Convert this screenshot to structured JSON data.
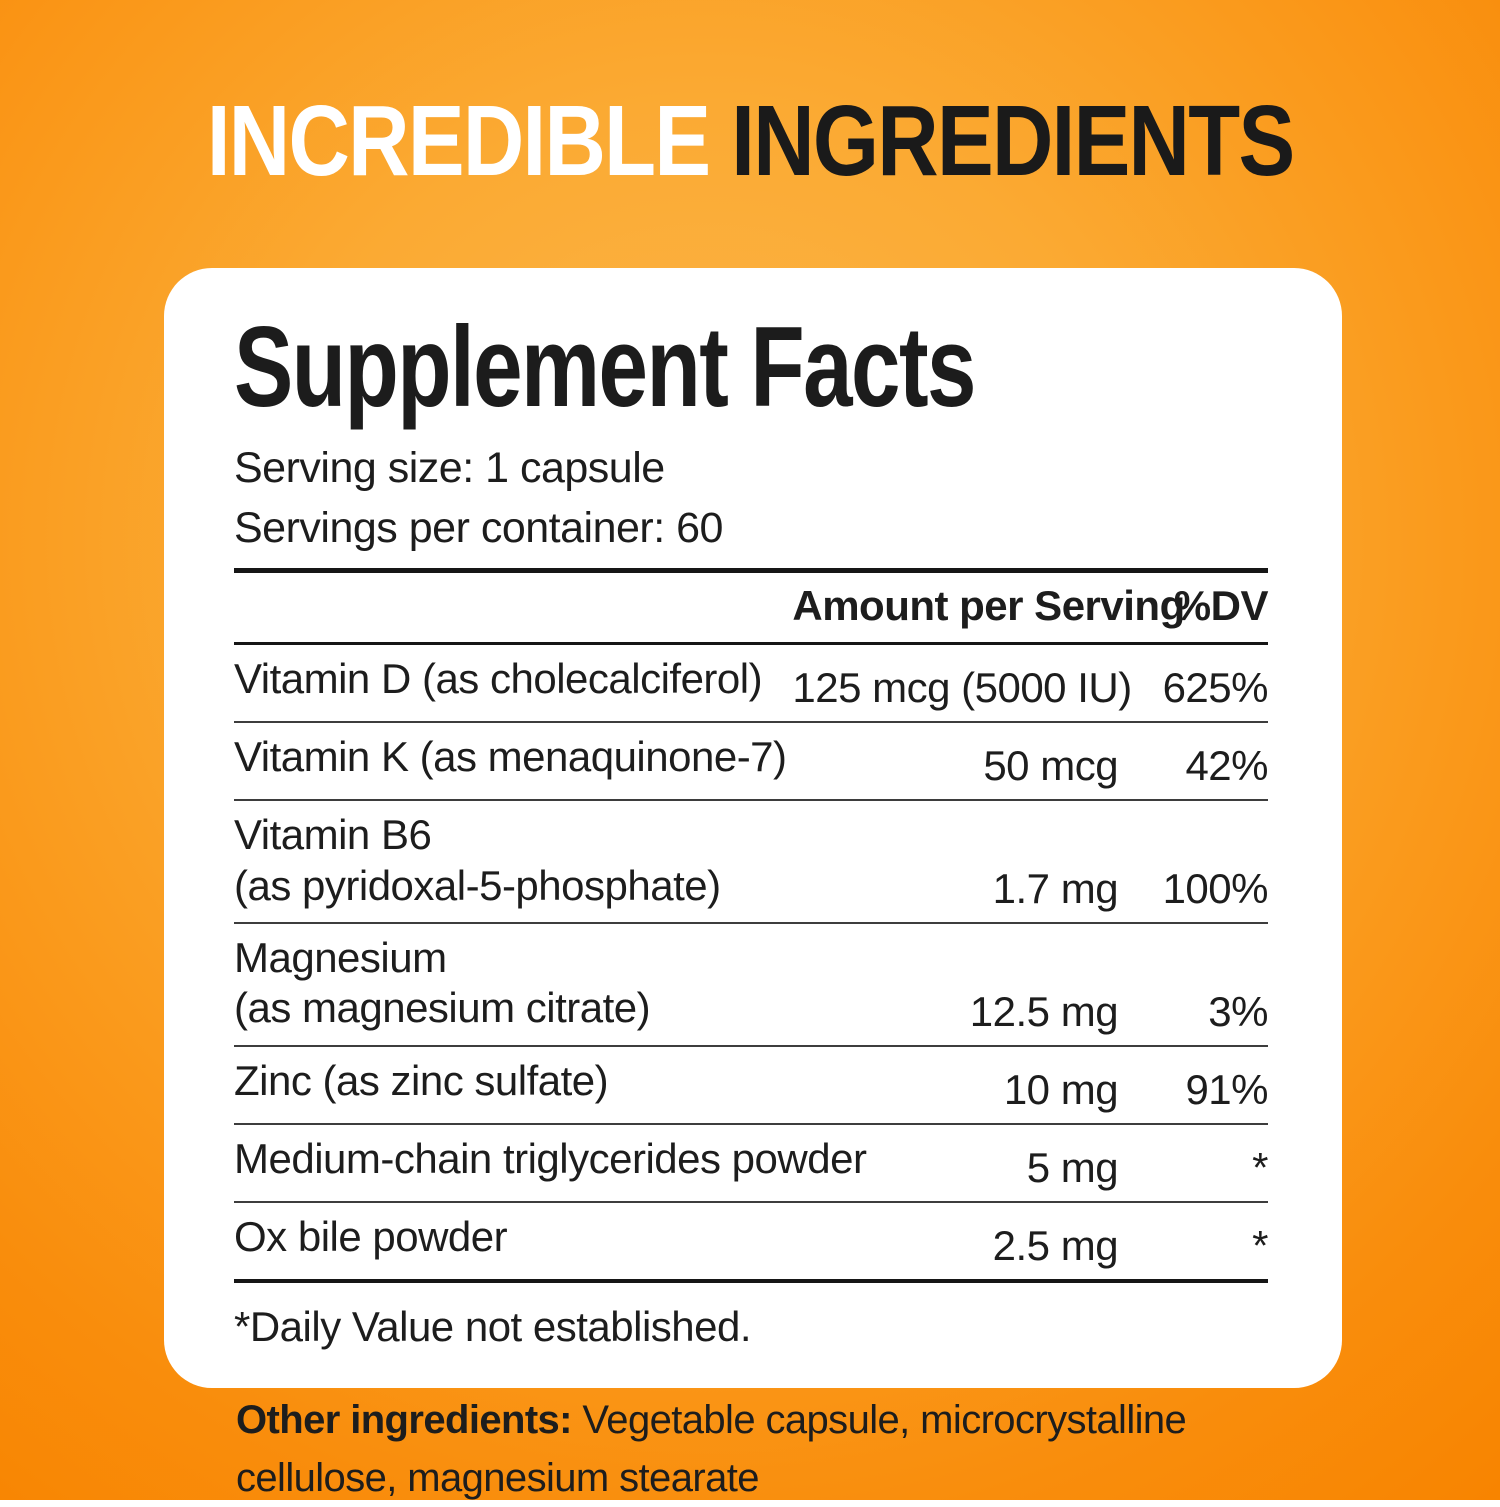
{
  "headline": {
    "white": "INCREDIBLE",
    "dark": "INGREDIENTS"
  },
  "panel": {
    "title": "Supplement Facts",
    "serving_size": "Serving size: 1 capsule",
    "servings_per_container": "Servings per container: 60",
    "table": {
      "amount_header": "Amount per Serving",
      "dv_header": "%DV",
      "rows": [
        {
          "name": "Vitamin D (as cholecalciferol)",
          "name2": "",
          "amount": "125 mcg (5000 IU)",
          "dv": "625%"
        },
        {
          "name": "Vitamin K (as menaquinone-7)",
          "name2": "",
          "amount": "50 mcg",
          "dv": "42%"
        },
        {
          "name": "Vitamin B6",
          "name2": "(as pyridoxal-5-phosphate)",
          "amount": "1.7 mg",
          "dv": "100%"
        },
        {
          "name": "Magnesium",
          "name2": "(as magnesium citrate)",
          "amount": "12.5 mg",
          "dv": "3%"
        },
        {
          "name": "Zinc (as zinc sulfate)",
          "name2": "",
          "amount": "10 mg",
          "dv": "91%"
        },
        {
          "name": "Medium-chain triglycerides powder",
          "name2": "",
          "amount": "5 mg",
          "dv": "*"
        },
        {
          "name": "Ox bile powder",
          "name2": "",
          "amount": "2.5 mg",
          "dv": "*"
        }
      ],
      "footnote": "*Daily Value not established."
    },
    "other_ingredients": {
      "label": "Other ingredients:",
      "text": "Vegetable capsule, microcrystalline cellulose, magnesium stearate"
    }
  },
  "colors": {
    "background_orange_light": "#fcb64a",
    "background_orange_dark": "#f88400",
    "headline_white": "#ffffff",
    "headline_dark": "#1a1a1a",
    "panel_background": "#ffffff",
    "text": "#1d1d1d"
  }
}
